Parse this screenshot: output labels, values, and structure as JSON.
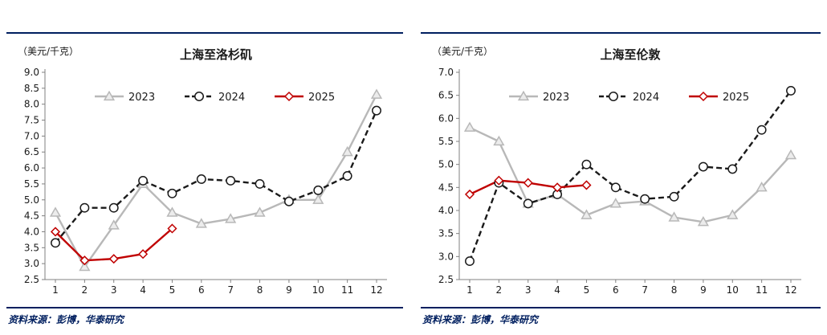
{
  "page": {
    "background": "#ffffff",
    "rule_color": "#001f5f",
    "source_text_color": "#001f5f",
    "axis_color": "#808080",
    "text_color": "#1a1a1a"
  },
  "charts": [
    {
      "unit_label": "（美元/千克）",
      "source_note": "资料来源：彭博，华泰研究",
      "chart_data": {
        "type": "line",
        "title": "上海至洛杉矶",
        "xlabel": "",
        "ylabel": "美元/千克",
        "categories": [
          "1",
          "2",
          "3",
          "4",
          "5",
          "6",
          "7",
          "8",
          "9",
          "10",
          "11",
          "12"
        ],
        "ylim": [
          2.5,
          9.0
        ],
        "ytick_step": 0.5,
        "grid": false,
        "legend_position": "top-center",
        "series": [
          {
            "name": "2023",
            "color": "#b8b8b8",
            "line_style": "solid",
            "marker": "triangle",
            "values": [
              4.6,
              2.9,
              4.2,
              5.5,
              4.6,
              4.25,
              4.4,
              4.6,
              5.0,
              5.0,
              6.5,
              8.3
            ]
          },
          {
            "name": "2024",
            "color": "#1a1a1a",
            "line_style": "dashed",
            "marker": "circle",
            "values": [
              3.65,
              4.75,
              4.75,
              5.6,
              5.2,
              5.65,
              5.6,
              5.5,
              4.95,
              5.3,
              5.75,
              7.8
            ]
          },
          {
            "name": "2025",
            "color": "#c00000",
            "line_style": "solid",
            "marker": "diamond",
            "values": [
              4.0,
              3.1,
              3.15,
              3.3,
              4.1
            ]
          }
        ]
      }
    },
    {
      "unit_label": "（美元/千克）",
      "source_note": "资料来源：彭博，华泰研究",
      "chart_data": {
        "type": "line",
        "title": "上海至伦敦",
        "xlabel": "",
        "ylabel": "美元/千克",
        "categories": [
          "1",
          "2",
          "3",
          "4",
          "5",
          "6",
          "7",
          "8",
          "9",
          "10",
          "11",
          "12"
        ],
        "ylim": [
          2.5,
          7.0
        ],
        "ytick_step": 0.5,
        "grid": false,
        "legend_position": "top-center",
        "series": [
          {
            "name": "2023",
            "color": "#b8b8b8",
            "line_style": "solid",
            "marker": "triangle",
            "values": [
              5.8,
              5.5,
              4.15,
              4.35,
              3.9,
              4.15,
              4.2,
              3.85,
              3.75,
              3.9,
              4.5,
              5.2
            ]
          },
          {
            "name": "2024",
            "color": "#1a1a1a",
            "line_style": "dashed",
            "marker": "circle",
            "values": [
              2.9,
              4.6,
              4.15,
              4.35,
              5.0,
              4.5,
              4.25,
              4.3,
              4.95,
              4.9,
              5.75,
              6.6
            ]
          },
          {
            "name": "2025",
            "color": "#c00000",
            "line_style": "solid",
            "marker": "diamond",
            "values": [
              4.35,
              4.65,
              4.6,
              4.5,
              4.55
            ]
          }
        ]
      }
    }
  ]
}
